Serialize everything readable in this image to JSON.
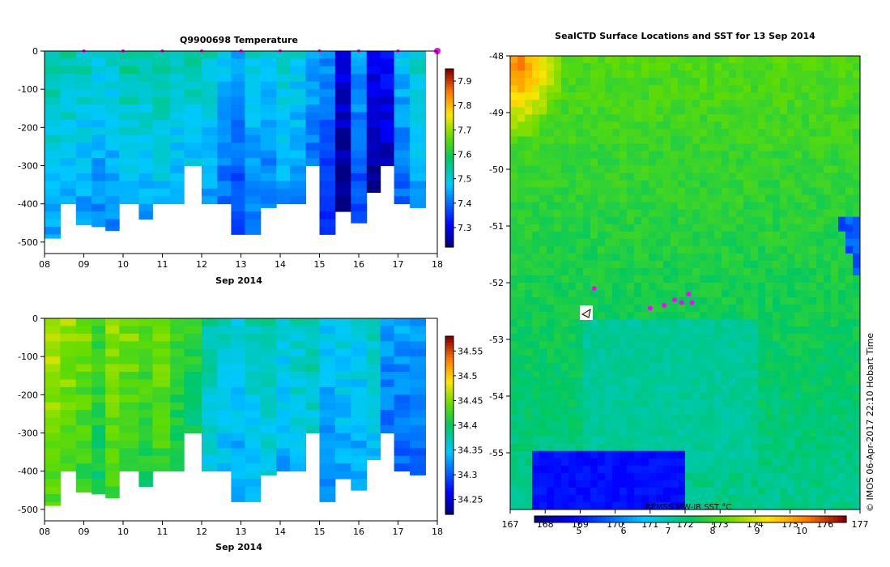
{
  "chart_data": [
    {
      "type": "heatmap",
      "title": "Q9900698  Temperature",
      "xlabel": "Sep 2014",
      "ylabel": "",
      "x_ticks": [
        "08",
        "09",
        "10",
        "11",
        "12",
        "13",
        "14",
        "15",
        "16",
        "17",
        "18"
      ],
      "y_ticks": [
        "0",
        "-100",
        "-200",
        "-300",
        "-400",
        "-500"
      ],
      "xlim": [
        8,
        18
      ],
      "ylim": [
        -530,
        0
      ],
      "colorbar": {
        "min": 7.22,
        "max": 7.95,
        "ticks": [
          "7.3",
          "7.4",
          "7.5",
          "7.6",
          "7.7",
          "7.8",
          "7.9"
        ]
      },
      "profiles": [
        {
          "x": 8.0,
          "value": 7.55,
          "depth": 490
        },
        {
          "x": 8.4,
          "value": 7.54,
          "depth": 400
        },
        {
          "x": 8.8,
          "value": 7.53,
          "depth": 455
        },
        {
          "x": 9.2,
          "value": 7.51,
          "depth": 460
        },
        {
          "x": 9.55,
          "value": 7.52,
          "depth": 470
        },
        {
          "x": 9.9,
          "value": 7.55,
          "depth": 400
        },
        {
          "x": 10.4,
          "value": 7.54,
          "depth": 440
        },
        {
          "x": 10.75,
          "value": 7.55,
          "depth": 400
        },
        {
          "x": 11.2,
          "value": 7.53,
          "depth": 400
        },
        {
          "x": 11.55,
          "value": 7.54,
          "depth": 300
        },
        {
          "x": 12.0,
          "value": 7.52,
          "depth": 400
        },
        {
          "x": 12.4,
          "value": 7.48,
          "depth": 400
        },
        {
          "x": 12.75,
          "value": 7.45,
          "depth": 480
        },
        {
          "x": 13.1,
          "value": 7.5,
          "depth": 480
        },
        {
          "x": 13.5,
          "value": 7.49,
          "depth": 410
        },
        {
          "x": 13.9,
          "value": 7.52,
          "depth": 400
        },
        {
          "x": 14.25,
          "value": 7.5,
          "depth": 400
        },
        {
          "x": 14.65,
          "value": 7.46,
          "depth": 300
        },
        {
          "x": 15.0,
          "value": 7.43,
          "depth": 480
        },
        {
          "x": 15.4,
          "value": 7.3,
          "depth": 420
        },
        {
          "x": 15.8,
          "value": 7.45,
          "depth": 450
        },
        {
          "x": 16.2,
          "value": 7.3,
          "depth": 370
        },
        {
          "x": 16.55,
          "value": 7.32,
          "depth": 300
        },
        {
          "x": 16.9,
          "value": 7.47,
          "depth": 400
        },
        {
          "x": 17.3,
          "value": 7.52,
          "depth": 410
        }
      ]
    },
    {
      "type": "heatmap",
      "title": "",
      "xlabel": "Sep 2014",
      "ylabel": "",
      "x_ticks": [
        "08",
        "09",
        "10",
        "11",
        "12",
        "13",
        "14",
        "15",
        "16",
        "17",
        "18"
      ],
      "y_ticks": [
        "0",
        "-100",
        "-200",
        "-300",
        "-400",
        "-500"
      ],
      "xlim": [
        8,
        18
      ],
      "ylim": [
        -530,
        0
      ],
      "colorbar": {
        "min": 34.22,
        "max": 34.58,
        "ticks": [
          "34.25",
          "34.3",
          "34.35",
          "34.4",
          "34.45",
          "34.5",
          "34.55"
        ]
      },
      "profiles": [
        {
          "x": 8.0,
          "value": 34.47,
          "depth": 490
        },
        {
          "x": 8.4,
          "value": 34.46,
          "depth": 400
        },
        {
          "x": 8.8,
          "value": 34.45,
          "depth": 455
        },
        {
          "x": 9.2,
          "value": 34.43,
          "depth": 460
        },
        {
          "x": 9.55,
          "value": 34.46,
          "depth": 470
        },
        {
          "x": 9.9,
          "value": 34.45,
          "depth": 400
        },
        {
          "x": 10.4,
          "value": 34.44,
          "depth": 440
        },
        {
          "x": 10.75,
          "value": 34.45,
          "depth": 400
        },
        {
          "x": 11.2,
          "value": 34.43,
          "depth": 400
        },
        {
          "x": 11.55,
          "value": 34.42,
          "depth": 300
        },
        {
          "x": 12.0,
          "value": 34.38,
          "depth": 400
        },
        {
          "x": 12.4,
          "value": 34.37,
          "depth": 400
        },
        {
          "x": 12.75,
          "value": 34.36,
          "depth": 480
        },
        {
          "x": 13.1,
          "value": 34.37,
          "depth": 480
        },
        {
          "x": 13.5,
          "value": 34.38,
          "depth": 410
        },
        {
          "x": 13.9,
          "value": 34.36,
          "depth": 400
        },
        {
          "x": 14.25,
          "value": 34.37,
          "depth": 400
        },
        {
          "x": 14.65,
          "value": 34.38,
          "depth": 300
        },
        {
          "x": 15.0,
          "value": 34.35,
          "depth": 480
        },
        {
          "x": 15.4,
          "value": 34.36,
          "depth": 420
        },
        {
          "x": 15.8,
          "value": 34.36,
          "depth": 450
        },
        {
          "x": 16.2,
          "value": 34.37,
          "depth": 370
        },
        {
          "x": 16.55,
          "value": 34.33,
          "depth": 300
        },
        {
          "x": 16.9,
          "value": 34.33,
          "depth": 400
        },
        {
          "x": 17.3,
          "value": 34.33,
          "depth": 410
        }
      ]
    },
    {
      "type": "heatmap",
      "title": "SealCTD Surface Locations and SST for 13 Sep 2014",
      "xlabel": "",
      "ylabel": "",
      "x_ticks": [
        "167",
        "168",
        "169",
        "170",
        "171",
        "172",
        "173",
        "174",
        "175",
        "176",
        "177"
      ],
      "y_ticks": [
        "-48",
        "-49",
        "-50",
        "-51",
        "-52",
        "-53",
        "-54",
        "-55"
      ],
      "xlim": [
        167,
        177
      ],
      "ylim": [
        -56,
        -48
      ],
      "colorbar": {
        "label": "REMSS MW-IR SST °C",
        "min": 4,
        "max": 11,
        "ticks": [
          "5",
          "6",
          "7",
          "8",
          "9",
          "10"
        ]
      },
      "locations": [
        {
          "lon": 169.4,
          "lat": -52.1
        },
        {
          "lon": 171.0,
          "lat": -52.45
        },
        {
          "lon": 171.4,
          "lat": -52.4
        },
        {
          "lon": 171.7,
          "lat": -52.3
        },
        {
          "lon": 171.9,
          "lat": -52.35
        },
        {
          "lon": 172.1,
          "lat": -52.2
        },
        {
          "lon": 172.2,
          "lat": -52.35
        }
      ]
    }
  ],
  "credit": "© IMOS 06-Apr-2017 22:10 Hobart Time",
  "colors": {
    "axis": "#000000",
    "marker": "#ff00ff",
    "background": "#ffffff"
  }
}
